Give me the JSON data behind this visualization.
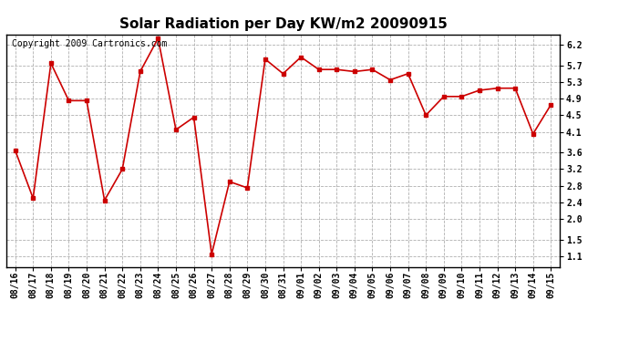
{
  "title": "Solar Radiation per Day KW/m2 20090915",
  "copyright_text": "Copyright 2009 Cartronics.com",
  "dates": [
    "08/16",
    "08/17",
    "08/18",
    "08/19",
    "08/20",
    "08/21",
    "08/22",
    "08/23",
    "08/24",
    "08/25",
    "08/26",
    "08/27",
    "08/28",
    "08/29",
    "08/30",
    "08/31",
    "09/01",
    "09/02",
    "09/03",
    "09/04",
    "09/05",
    "09/06",
    "09/07",
    "09/08",
    "09/09",
    "09/10",
    "09/11",
    "09/12",
    "09/13",
    "09/14",
    "09/15"
  ],
  "values": [
    3.65,
    2.5,
    5.75,
    4.85,
    4.85,
    2.45,
    3.2,
    5.55,
    6.35,
    4.15,
    4.45,
    1.15,
    2.9,
    2.75,
    5.85,
    5.5,
    5.9,
    5.6,
    5.6,
    5.55,
    5.6,
    5.35,
    5.5,
    4.5,
    4.95,
    4.95,
    5.1,
    5.15,
    5.15,
    4.05,
    4.75
  ],
  "line_color": "#cc0000",
  "marker": "s",
  "marker_size": 3,
  "background_color": "#ffffff",
  "grid_color": "#b0b0b0",
  "yticks": [
    1.1,
    1.5,
    2.0,
    2.4,
    2.8,
    3.2,
    3.6,
    4.1,
    4.5,
    4.9,
    5.3,
    5.7,
    6.2
  ],
  "ylim": [
    0.85,
    6.45
  ],
  "title_fontsize": 11,
  "axis_fontsize": 7,
  "copyright_fontsize": 7
}
